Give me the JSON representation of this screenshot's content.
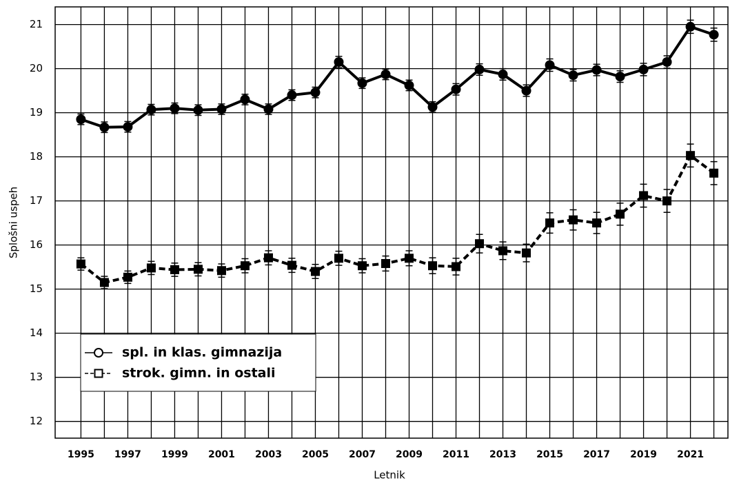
{
  "chart_data": {
    "type": "line",
    "x_label": "Letnik",
    "y_label": "Splošni uspeh",
    "x": [
      1995,
      1996,
      1997,
      1998,
      1999,
      2000,
      2001,
      2002,
      2003,
      2004,
      2005,
      2006,
      2007,
      2008,
      2009,
      2010,
      2011,
      2012,
      2013,
      2014,
      2015,
      2016,
      2017,
      2018,
      2019,
      2020,
      2021,
      2022
    ],
    "series": [
      {
        "name": "spl. in klas. gimnazija",
        "color": "#000000",
        "dash": false,
        "marker": "circle",
        "values": [
          18.85,
          18.67,
          18.68,
          19.07,
          19.1,
          19.06,
          19.08,
          19.3,
          19.08,
          19.4,
          19.46,
          20.15,
          19.67,
          19.87,
          19.62,
          19.13,
          19.53,
          19.98,
          19.87,
          19.5,
          20.08,
          19.85,
          19.97,
          19.82,
          19.98,
          20.15,
          20.95,
          20.77
        ],
        "errors": [
          0.12,
          0.12,
          0.12,
          0.12,
          0.12,
          0.12,
          0.12,
          0.12,
          0.12,
          0.12,
          0.12,
          0.13,
          0.12,
          0.12,
          0.12,
          0.12,
          0.13,
          0.13,
          0.13,
          0.13,
          0.14,
          0.13,
          0.13,
          0.13,
          0.14,
          0.14,
          0.15,
          0.15
        ]
      },
      {
        "name": "strok. gimn. in ostali",
        "color": "#000000",
        "dash": true,
        "marker": "square",
        "values": [
          15.57,
          15.15,
          15.27,
          15.48,
          15.44,
          15.45,
          15.42,
          15.53,
          15.71,
          15.54,
          15.4,
          15.7,
          15.53,
          15.58,
          15.7,
          15.53,
          15.51,
          16.03,
          15.87,
          15.82,
          16.5,
          16.57,
          16.5,
          16.7,
          17.12,
          17.0,
          18.03,
          17.63
        ],
        "errors": [
          0.14,
          0.14,
          0.14,
          0.15,
          0.15,
          0.15,
          0.15,
          0.16,
          0.16,
          0.16,
          0.16,
          0.16,
          0.16,
          0.17,
          0.17,
          0.18,
          0.19,
          0.21,
          0.2,
          0.2,
          0.23,
          0.23,
          0.24,
          0.25,
          0.26,
          0.26,
          0.26,
          0.26
        ]
      }
    ],
    "xlim": [
      1993.9,
      2022.6
    ],
    "xticks": [
      1995,
      1997,
      1999,
      2001,
      2003,
      2005,
      2007,
      2009,
      2011,
      2013,
      2015,
      2017,
      2019,
      2021
    ],
    "xminor_ticks": [
      1996,
      1998,
      2000,
      2002,
      2004,
      2006,
      2008,
      2010,
      2012,
      2014,
      2016,
      2018,
      2020,
      2022
    ],
    "ylim": [
      11.62,
      21.4
    ],
    "yticks": [
      12,
      13,
      14,
      15,
      16,
      17,
      18,
      19,
      20,
      21
    ],
    "grid": true,
    "legend": "lower left"
  }
}
